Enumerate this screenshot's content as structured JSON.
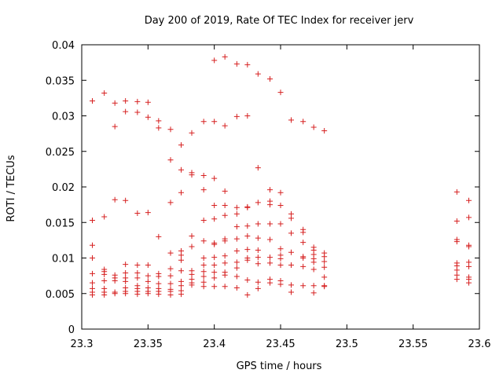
{
  "chart_data": {
    "type": "scatter",
    "title": "Day 200 of 2019, Rate Of TEC Index for receiver jerv",
    "xlabel": "GPS time / hours",
    "ylabel": "ROTI / TECUs",
    "xlim": [
      23.3,
      23.6
    ],
    "ylim": [
      0,
      0.04
    ],
    "xticks": [
      23.3,
      23.35,
      23.4,
      23.45,
      23.5,
      23.55,
      23.6
    ],
    "xtick_labels": [
      "23.3",
      "23.35",
      "23.4",
      "23.45",
      "23.5",
      "23.55",
      "23.6"
    ],
    "yticks": [
      0,
      0.005,
      0.01,
      0.015,
      0.02,
      0.025,
      0.03,
      0.035,
      0.04
    ],
    "ytick_labels": [
      "0",
      "0.005",
      "0.01",
      "0.015",
      "0.02",
      "0.025",
      "0.03",
      "0.035",
      "0.04"
    ],
    "grid": false,
    "marker": "+",
    "color": "#d62020",
    "series": [
      {
        "points": [
          [
            23.308,
            0.0321
          ],
          [
            23.308,
            0.0153
          ],
          [
            23.308,
            0.0118
          ],
          [
            23.308,
            0.01
          ],
          [
            23.308,
            0.0078
          ],
          [
            23.308,
            0.0065
          ],
          [
            23.308,
            0.0057
          ],
          [
            23.308,
            0.0052
          ],
          [
            23.308,
            0.0048
          ],
          [
            23.317,
            0.0332
          ],
          [
            23.317,
            0.0158
          ],
          [
            23.317,
            0.0084
          ],
          [
            23.317,
            0.0081
          ],
          [
            23.317,
            0.0077
          ],
          [
            23.317,
            0.0068
          ],
          [
            23.317,
            0.0057
          ],
          [
            23.317,
            0.0052
          ],
          [
            23.317,
            0.0048
          ],
          [
            23.325,
            0.0318
          ],
          [
            23.325,
            0.0285
          ],
          [
            23.325,
            0.0182
          ],
          [
            23.325,
            0.0076
          ],
          [
            23.325,
            0.0072
          ],
          [
            23.325,
            0.0068
          ],
          [
            23.325,
            0.0052
          ],
          [
            23.325,
            0.005
          ],
          [
            23.333,
            0.0321
          ],
          [
            23.333,
            0.0306
          ],
          [
            23.333,
            0.0181
          ],
          [
            23.333,
            0.0091
          ],
          [
            23.333,
            0.0079
          ],
          [
            23.333,
            0.0072
          ],
          [
            23.333,
            0.0067
          ],
          [
            23.333,
            0.0058
          ],
          [
            23.333,
            0.0053
          ],
          [
            23.333,
            0.005
          ],
          [
            23.342,
            0.032
          ],
          [
            23.342,
            0.0305
          ],
          [
            23.342,
            0.0163
          ],
          [
            23.342,
            0.009
          ],
          [
            23.342,
            0.0079
          ],
          [
            23.342,
            0.0072
          ],
          [
            23.342,
            0.0061
          ],
          [
            23.342,
            0.0057
          ],
          [
            23.342,
            0.0053
          ],
          [
            23.342,
            0.0049
          ],
          [
            23.35,
            0.0319
          ],
          [
            23.35,
            0.0298
          ],
          [
            23.35,
            0.0164
          ],
          [
            23.35,
            0.009
          ],
          [
            23.35,
            0.0075
          ],
          [
            23.35,
            0.0067
          ],
          [
            23.35,
            0.0058
          ],
          [
            23.35,
            0.0053
          ],
          [
            23.35,
            0.005
          ],
          [
            23.358,
            0.0293
          ],
          [
            23.358,
            0.0283
          ],
          [
            23.358,
            0.013
          ],
          [
            23.358,
            0.0078
          ],
          [
            23.358,
            0.0074
          ],
          [
            23.358,
            0.0064
          ],
          [
            23.358,
            0.0057
          ],
          [
            23.358,
            0.0053
          ],
          [
            23.358,
            0.0049
          ],
          [
            23.367,
            0.0281
          ],
          [
            23.367,
            0.0238
          ],
          [
            23.367,
            0.0178
          ],
          [
            23.367,
            0.0107
          ],
          [
            23.367,
            0.0085
          ],
          [
            23.367,
            0.0075
          ],
          [
            23.367,
            0.0064
          ],
          [
            23.367,
            0.0056
          ],
          [
            23.367,
            0.0053
          ],
          [
            23.367,
            0.0048
          ],
          [
            23.375,
            0.0259
          ],
          [
            23.375,
            0.0224
          ],
          [
            23.375,
            0.0192
          ],
          [
            23.375,
            0.011
          ],
          [
            23.375,
            0.0104
          ],
          [
            23.375,
            0.0097
          ],
          [
            23.375,
            0.0082
          ],
          [
            23.375,
            0.0067
          ],
          [
            23.375,
            0.0061
          ],
          [
            23.375,
            0.0054
          ],
          [
            23.375,
            0.0049
          ],
          [
            23.383,
            0.0276
          ],
          [
            23.383,
            0.022
          ],
          [
            23.383,
            0.0217
          ],
          [
            23.383,
            0.0131
          ],
          [
            23.383,
            0.0116
          ],
          [
            23.383,
            0.0082
          ],
          [
            23.383,
            0.0077
          ],
          [
            23.383,
            0.007
          ],
          [
            23.383,
            0.0065
          ],
          [
            23.383,
            0.0062
          ],
          [
            23.392,
            0.0292
          ],
          [
            23.392,
            0.0216
          ],
          [
            23.392,
            0.0196
          ],
          [
            23.392,
            0.0153
          ],
          [
            23.392,
            0.0124
          ],
          [
            23.392,
            0.01
          ],
          [
            23.392,
            0.009
          ],
          [
            23.392,
            0.0081
          ],
          [
            23.392,
            0.0074
          ],
          [
            23.392,
            0.0066
          ],
          [
            23.392,
            0.006
          ],
          [
            23.4,
            0.0378
          ],
          [
            23.4,
            0.0292
          ],
          [
            23.4,
            0.0212
          ],
          [
            23.4,
            0.0174
          ],
          [
            23.4,
            0.0155
          ],
          [
            23.4,
            0.0121
          ],
          [
            23.4,
            0.0119
          ],
          [
            23.4,
            0.0101
          ],
          [
            23.4,
            0.009
          ],
          [
            23.4,
            0.008
          ],
          [
            23.4,
            0.0072
          ],
          [
            23.4,
            0.006
          ],
          [
            23.408,
            0.0383
          ],
          [
            23.408,
            0.0286
          ],
          [
            23.408,
            0.0194
          ],
          [
            23.408,
            0.0174
          ],
          [
            23.408,
            0.016
          ],
          [
            23.408,
            0.0127
          ],
          [
            23.408,
            0.0124
          ],
          [
            23.408,
            0.0103
          ],
          [
            23.408,
            0.0093
          ],
          [
            23.408,
            0.008
          ],
          [
            23.408,
            0.0076
          ],
          [
            23.408,
            0.006
          ],
          [
            23.417,
            0.0373
          ],
          [
            23.417,
            0.0299
          ],
          [
            23.417,
            0.0171
          ],
          [
            23.417,
            0.0162
          ],
          [
            23.417,
            0.0144
          ],
          [
            23.417,
            0.0127
          ],
          [
            23.417,
            0.011
          ],
          [
            23.417,
            0.0094
          ],
          [
            23.417,
            0.0086
          ],
          [
            23.417,
            0.0074
          ],
          [
            23.417,
            0.0058
          ],
          [
            23.425,
            0.0372
          ],
          [
            23.425,
            0.03
          ],
          [
            23.425,
            0.0172
          ],
          [
            23.425,
            0.0171
          ],
          [
            23.425,
            0.0145
          ],
          [
            23.425,
            0.0131
          ],
          [
            23.425,
            0.0112
          ],
          [
            23.425,
            0.01
          ],
          [
            23.425,
            0.0097
          ],
          [
            23.425,
            0.0069
          ],
          [
            23.425,
            0.0048
          ],
          [
            23.433,
            0.0359
          ],
          [
            23.433,
            0.0227
          ],
          [
            23.433,
            0.0178
          ],
          [
            23.433,
            0.0148
          ],
          [
            23.433,
            0.0128
          ],
          [
            23.433,
            0.0111
          ],
          [
            23.433,
            0.0101
          ],
          [
            23.433,
            0.0092
          ],
          [
            23.433,
            0.0066
          ],
          [
            23.433,
            0.0057
          ],
          [
            23.442,
            0.0352
          ],
          [
            23.442,
            0.0196
          ],
          [
            23.442,
            0.018
          ],
          [
            23.442,
            0.0175
          ],
          [
            23.442,
            0.0148
          ],
          [
            23.442,
            0.0126
          ],
          [
            23.442,
            0.0101
          ],
          [
            23.442,
            0.0093
          ],
          [
            23.442,
            0.007
          ],
          [
            23.442,
            0.0065
          ],
          [
            23.45,
            0.0333
          ],
          [
            23.45,
            0.0192
          ],
          [
            23.45,
            0.0174
          ],
          [
            23.45,
            0.0148
          ],
          [
            23.45,
            0.0113
          ],
          [
            23.45,
            0.0104
          ],
          [
            23.45,
            0.0099
          ],
          [
            23.45,
            0.009
          ],
          [
            23.45,
            0.0068
          ],
          [
            23.45,
            0.0063
          ],
          [
            23.458,
            0.0294
          ],
          [
            23.458,
            0.0162
          ],
          [
            23.458,
            0.0156
          ],
          [
            23.458,
            0.0135
          ],
          [
            23.458,
            0.0108
          ],
          [
            23.458,
            0.009
          ],
          [
            23.458,
            0.0062
          ],
          [
            23.458,
            0.0052
          ],
          [
            23.467,
            0.0292
          ],
          [
            23.467,
            0.014
          ],
          [
            23.467,
            0.0136
          ],
          [
            23.467,
            0.0122
          ],
          [
            23.467,
            0.0102
          ],
          [
            23.467,
            0.01
          ],
          [
            23.467,
            0.0088
          ],
          [
            23.467,
            0.0061
          ],
          [
            23.475,
            0.0284
          ],
          [
            23.475,
            0.0115
          ],
          [
            23.475,
            0.0111
          ],
          [
            23.475,
            0.0105
          ],
          [
            23.475,
            0.0099
          ],
          [
            23.475,
            0.0094
          ],
          [
            23.475,
            0.0084
          ],
          [
            23.475,
            0.0061
          ],
          [
            23.475,
            0.0051
          ],
          [
            23.483,
            0.0279
          ],
          [
            23.483,
            0.0107
          ],
          [
            23.483,
            0.0102
          ],
          [
            23.483,
            0.0095
          ],
          [
            23.483,
            0.0087
          ],
          [
            23.483,
            0.0073
          ],
          [
            23.483,
            0.0061
          ],
          [
            23.483,
            0.006
          ],
          [
            23.583,
            0.0193
          ],
          [
            23.583,
            0.0152
          ],
          [
            23.583,
            0.0126
          ],
          [
            23.583,
            0.0123
          ],
          [
            23.583,
            0.0093
          ],
          [
            23.583,
            0.0089
          ],
          [
            23.583,
            0.0083
          ],
          [
            23.583,
            0.0076
          ],
          [
            23.583,
            0.007
          ],
          [
            23.592,
            0.0181
          ],
          [
            23.592,
            0.0157
          ],
          [
            23.592,
            0.0118
          ],
          [
            23.592,
            0.0116
          ],
          [
            23.592,
            0.0094
          ],
          [
            23.592,
            0.0088
          ],
          [
            23.592,
            0.0073
          ],
          [
            23.592,
            0.007
          ],
          [
            23.592,
            0.0065
          ]
        ]
      }
    ]
  }
}
